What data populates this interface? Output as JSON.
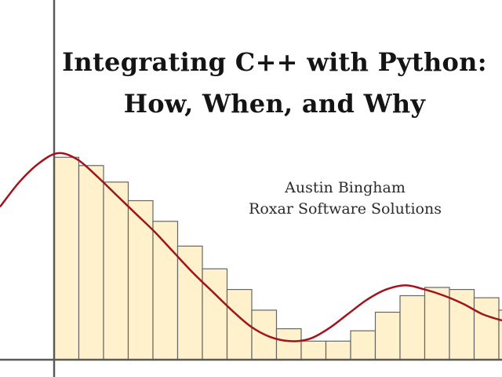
{
  "slide": {
    "title_line_1": "Integrating C++ with Python:",
    "title_line_2": "How, When, and Why",
    "author": "Austin Bingham",
    "company": "Roxar Software Solutions"
  },
  "illustration": {
    "colors": {
      "bar_fill": "#fff1cc",
      "bar_stroke": "#666666",
      "curve": "#a0141c",
      "axes": "#5a5a5a"
    },
    "bar_heights": [
      0.98,
      0.94,
      0.86,
      0.77,
      0.67,
      0.55,
      0.44,
      0.34,
      0.24,
      0.15,
      0.09,
      0.09,
      0.14,
      0.23,
      0.31,
      0.35,
      0.34,
      0.3,
      0.24,
      0.17
    ],
    "curve_samples": [
      0.74,
      0.86,
      0.95,
      1.0,
      0.97,
      0.89,
      0.8,
      0.71,
      0.62,
      0.52,
      0.42,
      0.33,
      0.24,
      0.16,
      0.11,
      0.09,
      0.1,
      0.15,
      0.22,
      0.29,
      0.34,
      0.36,
      0.34,
      0.31,
      0.27,
      0.22,
      0.19
    ]
  }
}
